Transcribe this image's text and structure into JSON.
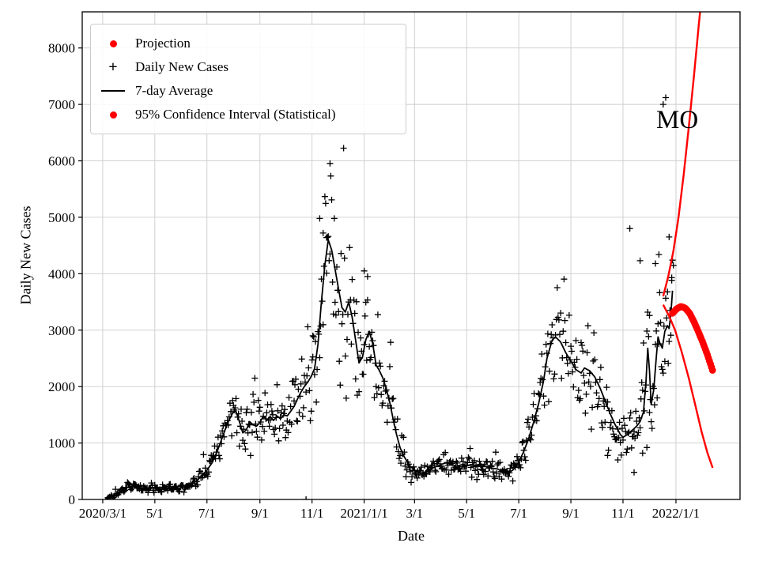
{
  "chart_data": {
    "type": "scatter",
    "title": "",
    "xlabel": "Date",
    "ylabel": "Daily New Cases",
    "x_unit": "days since 2020/3/1",
    "xlim": [
      -24,
      746
    ],
    "ylim": [
      0,
      8640
    ],
    "y_ticks": [
      0,
      1000,
      2000,
      3000,
      4000,
      5000,
      6000,
      7000,
      8000
    ],
    "x_ticks": {
      "labels": [
        "2020/3/1",
        "5/1",
        "7/1",
        "9/1",
        "11/1",
        "2021/1/1",
        "3/1",
        "5/1",
        "7/1",
        "9/1",
        "11/1",
        "2022/1/1"
      ],
      "days": [
        0,
        61,
        122,
        184,
        245,
        306,
        365,
        426,
        487,
        548,
        609,
        671
      ]
    },
    "grid": true,
    "annotation": {
      "text": "MO",
      "day": 660,
      "value": 6650
    },
    "legend": {
      "position": "upper left",
      "items": [
        {
          "label": "Projection",
          "marker": "dot",
          "color": "#ff0000"
        },
        {
          "label": "Daily New Cases",
          "marker": "plus",
          "color": "#000000"
        },
        {
          "label": "7-day Average",
          "marker": "line",
          "color": "#000000"
        },
        {
          "label": "95% Confidence Interval (Statistical)",
          "marker": "dot",
          "color": "#ff0000"
        }
      ]
    },
    "series": [
      {
        "name": "7-day Average",
        "kind": "line",
        "color": "#000000",
        "points": [
          [
            3,
            10
          ],
          [
            10,
            40
          ],
          [
            16,
            90
          ],
          [
            22,
            150
          ],
          [
            28,
            210
          ],
          [
            34,
            235
          ],
          [
            40,
            225
          ],
          [
            46,
            185
          ],
          [
            52,
            200
          ],
          [
            58,
            215
          ],
          [
            61,
            210
          ],
          [
            68,
            185
          ],
          [
            75,
            195
          ],
          [
            82,
            205
          ],
          [
            89,
            200
          ],
          [
            96,
            220
          ],
          [
            103,
            260
          ],
          [
            110,
            330
          ],
          [
            116,
            420
          ],
          [
            122,
            520
          ],
          [
            128,
            650
          ],
          [
            134,
            850
          ],
          [
            140,
            1100
          ],
          [
            146,
            1350
          ],
          [
            152,
            1530
          ],
          [
            156,
            1560
          ],
          [
            160,
            1380
          ],
          [
            164,
            1180
          ],
          [
            168,
            1230
          ],
          [
            172,
            1380
          ],
          [
            176,
            1320
          ],
          [
            180,
            1300
          ],
          [
            184,
            1360
          ],
          [
            188,
            1480
          ],
          [
            192,
            1400
          ],
          [
            196,
            1470
          ],
          [
            200,
            1400
          ],
          [
            204,
            1480
          ],
          [
            208,
            1430
          ],
          [
            212,
            1500
          ],
          [
            216,
            1480
          ],
          [
            220,
            1560
          ],
          [
            224,
            1650
          ],
          [
            228,
            1780
          ],
          [
            232,
            1900
          ],
          [
            236,
            2000
          ],
          [
            240,
            2080
          ],
          [
            244,
            2180
          ],
          [
            248,
            2320
          ],
          [
            252,
            2750
          ],
          [
            256,
            3500
          ],
          [
            260,
            4150
          ],
          [
            264,
            4600
          ],
          [
            268,
            4420
          ],
          [
            272,
            4080
          ],
          [
            276,
            3730
          ],
          [
            280,
            3400
          ],
          [
            284,
            3320
          ],
          [
            288,
            3500
          ],
          [
            292,
            3230
          ],
          [
            296,
            2820
          ],
          [
            300,
            2420
          ],
          [
            304,
            2520
          ],
          [
            308,
            2830
          ],
          [
            312,
            2980
          ],
          [
            316,
            2760
          ],
          [
            320,
            2380
          ],
          [
            324,
            2280
          ],
          [
            328,
            2150
          ],
          [
            332,
            1950
          ],
          [
            336,
            1720
          ],
          [
            340,
            1420
          ],
          [
            344,
            1150
          ],
          [
            348,
            920
          ],
          [
            352,
            780
          ],
          [
            356,
            680
          ],
          [
            360,
            590
          ],
          [
            365,
            520
          ],
          [
            372,
            460
          ],
          [
            378,
            490
          ],
          [
            384,
            540
          ],
          [
            390,
            580
          ],
          [
            396,
            620
          ],
          [
            402,
            650
          ],
          [
            408,
            620
          ],
          [
            414,
            590
          ],
          [
            420,
            615
          ],
          [
            426,
            600
          ],
          [
            432,
            620
          ],
          [
            438,
            590
          ],
          [
            444,
            610
          ],
          [
            450,
            580
          ],
          [
            456,
            555
          ],
          [
            462,
            540
          ],
          [
            468,
            500
          ],
          [
            474,
            470
          ],
          [
            480,
            520
          ],
          [
            486,
            640
          ],
          [
            492,
            820
          ],
          [
            498,
            1050
          ],
          [
            504,
            1350
          ],
          [
            510,
            1680
          ],
          [
            516,
            2100
          ],
          [
            520,
            2500
          ],
          [
            526,
            2820
          ],
          [
            530,
            2880
          ],
          [
            536,
            2790
          ],
          [
            542,
            2600
          ],
          [
            548,
            2450
          ],
          [
            554,
            2300
          ],
          [
            560,
            2240
          ],
          [
            564,
            2330
          ],
          [
            570,
            2280
          ],
          [
            576,
            2170
          ],
          [
            582,
            1980
          ],
          [
            588,
            1750
          ],
          [
            594,
            1520
          ],
          [
            600,
            1320
          ],
          [
            606,
            1150
          ],
          [
            609,
            1100
          ],
          [
            613,
            1140
          ],
          [
            617,
            1190
          ],
          [
            621,
            1240
          ],
          [
            625,
            1300
          ],
          [
            629,
            1380
          ],
          [
            633,
            1550
          ],
          [
            636,
            2100
          ],
          [
            638,
            2680
          ],
          [
            640,
            2280
          ],
          [
            642,
            1680
          ],
          [
            645,
            1950
          ],
          [
            648,
            2520
          ],
          [
            650,
            2880
          ],
          [
            652,
            2780
          ],
          [
            655,
            2680
          ],
          [
            658,
            2980
          ],
          [
            661,
            3080
          ],
          [
            663,
            3030
          ],
          [
            665,
            3280
          ],
          [
            667,
            3700
          ]
        ]
      },
      {
        "name": "Projection",
        "kind": "dots-thick",
        "color": "#ff0000",
        "points": [
          [
            667,
            3300
          ],
          [
            672,
            3380
          ],
          [
            677,
            3420
          ],
          [
            682,
            3390
          ],
          [
            687,
            3300
          ],
          [
            692,
            3150
          ],
          [
            697,
            2980
          ],
          [
            702,
            2800
          ],
          [
            707,
            2600
          ],
          [
            711,
            2420
          ],
          [
            714,
            2280
          ]
        ]
      },
      {
        "name": "95% CI upper bound",
        "kind": "line",
        "color": "#ff0000",
        "points": [
          [
            656,
            3600
          ],
          [
            662,
            3950
          ],
          [
            668,
            4400
          ],
          [
            674,
            5000
          ],
          [
            680,
            5750
          ],
          [
            686,
            6600
          ],
          [
            692,
            7500
          ],
          [
            698,
            8450
          ],
          [
            701,
            8900
          ]
        ]
      },
      {
        "name": "95% CI lower bound",
        "kind": "line",
        "color": "#ff0000",
        "points": [
          [
            656,
            3450
          ],
          [
            663,
            3250
          ],
          [
            670,
            3000
          ],
          [
            678,
            2600
          ],
          [
            686,
            2150
          ],
          [
            694,
            1650
          ],
          [
            701,
            1200
          ],
          [
            708,
            820
          ],
          [
            714,
            560
          ]
        ]
      },
      {
        "name": "Daily New Cases",
        "kind": "scatter-plus",
        "color": "#000000",
        "derived": {
          "from": "7-day Average",
          "day_start": 6,
          "day_end": 668,
          "seed": 12345,
          "weekly_amplitude": 0.15,
          "noise_amplitude": 0.38,
          "spike_probability": 0.03
        },
        "outliers": [
          [
            238,
            0
          ],
          [
            254,
            4980
          ],
          [
            258,
            4720
          ],
          [
            262,
            4640
          ],
          [
            266,
            4350
          ],
          [
            246,
            2900
          ],
          [
            306,
            4050
          ],
          [
            310,
            3950
          ],
          [
            591,
            780
          ],
          [
            603,
            700
          ],
          [
            617,
            4800
          ],
          [
            622,
            480
          ],
          [
            629,
            4230
          ],
          [
            632,
            820
          ],
          [
            637,
            920
          ],
          [
            640,
            3260
          ],
          [
            647,
            4180
          ],
          [
            651,
            4340
          ],
          [
            656,
            7000
          ],
          [
            659,
            7120
          ],
          [
            663,
            4650
          ],
          [
            666,
            3930
          ]
        ]
      }
    ]
  }
}
